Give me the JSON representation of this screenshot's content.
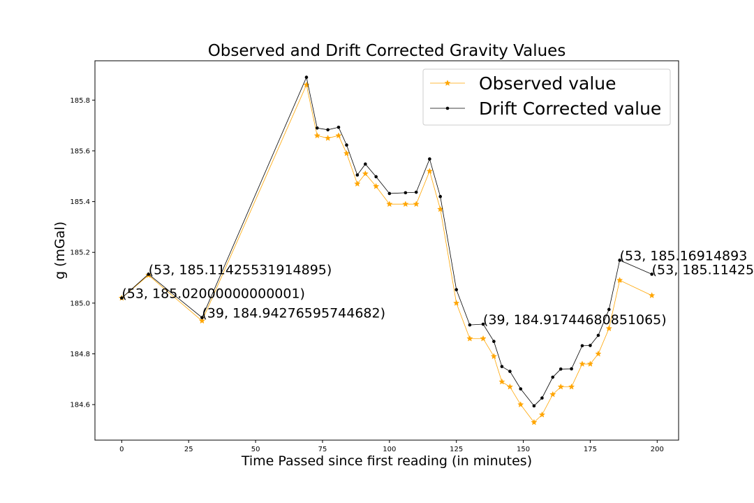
{
  "chart_data": {
    "type": "line",
    "title": "Observed and Drift Corrected Gravity Values",
    "xlabel": "Time Passed since first reading (in minutes)",
    "ylabel": "g (mGal)",
    "xlim": [
      -10,
      208
    ],
    "ylim": [
      184.46,
      185.955
    ],
    "xticks": [
      0,
      25,
      50,
      75,
      100,
      125,
      150,
      175,
      200
    ],
    "yticks": [
      184.6,
      184.8,
      185.0,
      185.2,
      185.4,
      185.6,
      185.8
    ],
    "grid": false,
    "legend_position": "top-right",
    "series": [
      {
        "name": "Observed value",
        "color": "#ffa500",
        "marker": "star",
        "x": [
          0,
          10,
          30,
          69,
          73,
          77,
          81,
          84,
          88,
          91,
          95,
          100,
          106,
          110,
          115,
          119,
          125,
          130,
          135,
          139,
          142,
          145,
          149,
          154,
          157,
          161,
          164,
          168,
          172,
          175,
          178,
          182,
          186,
          198
        ],
        "y": [
          185.02,
          185.11,
          184.93,
          185.86,
          185.66,
          185.65,
          185.66,
          185.59,
          185.47,
          185.51,
          185.46,
          185.39,
          185.39,
          185.39,
          185.52,
          185.37,
          185.0,
          184.86,
          184.86,
          184.79,
          184.69,
          184.67,
          184.6,
          184.53,
          184.56,
          184.64,
          184.67,
          184.67,
          184.76,
          184.76,
          184.8,
          184.9,
          185.09,
          185.03
        ]
      },
      {
        "name": "Drift Corrected value",
        "color": "#000000",
        "marker": "point",
        "x": [
          0,
          10,
          30,
          69,
          73,
          77,
          81,
          84,
          88,
          91,
          95,
          100,
          106,
          110,
          115,
          119,
          125,
          130,
          135,
          139,
          142,
          145,
          149,
          154,
          157,
          161,
          164,
          168,
          172,
          175,
          178,
          182,
          186,
          198
        ],
        "y": [
          185.02,
          185.114,
          184.943,
          185.89,
          185.69,
          185.683,
          185.693,
          185.623,
          185.505,
          185.548,
          185.498,
          185.432,
          185.435,
          185.437,
          185.568,
          185.42,
          185.053,
          184.914,
          184.917,
          184.849,
          184.75,
          184.731,
          184.662,
          184.595,
          184.626,
          184.708,
          184.74,
          184.741,
          184.832,
          184.833,
          184.873,
          184.975,
          185.169,
          185.114
        ]
      }
    ],
    "annotations": [
      {
        "text": "(53, 185.02000000000001)",
        "x": 0,
        "y": 185.02
      },
      {
        "text": "(53, 185.11425531914895)",
        "x": 10,
        "y": 185.114
      },
      {
        "text": "(39, 184.94276595744682)",
        "x": 30,
        "y": 184.943
      },
      {
        "text": "(39, 184.91744680851065)",
        "x": 135,
        "y": 184.917
      },
      {
        "text": "(53, 185.16914893",
        "x": 186,
        "y": 185.169
      },
      {
        "text": "(53, 185.11425",
        "x": 198,
        "y": 185.114
      }
    ]
  }
}
